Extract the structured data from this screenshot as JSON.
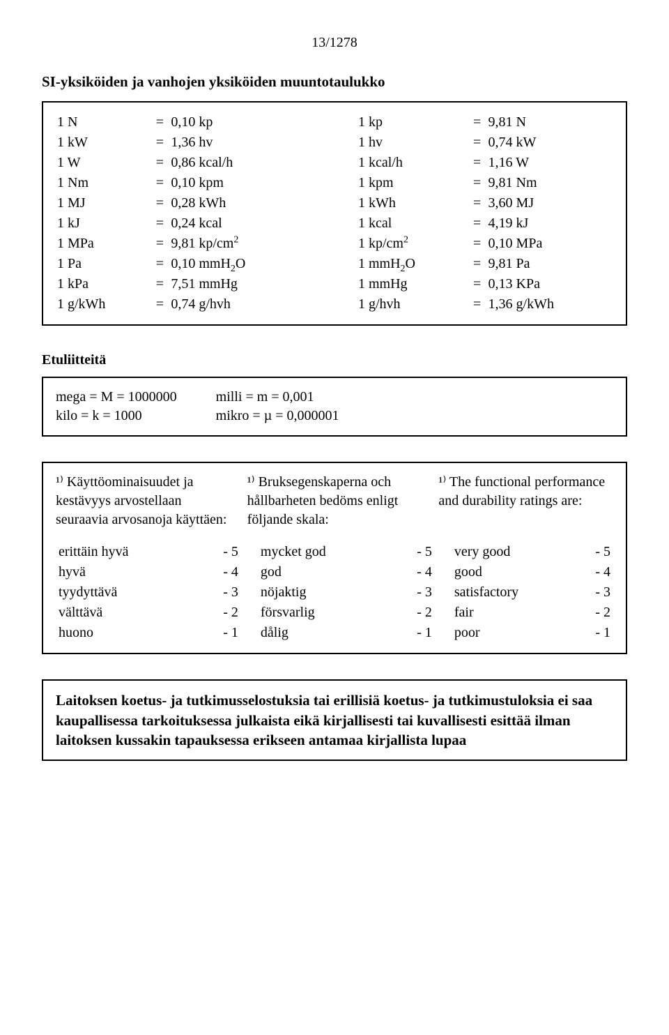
{
  "page_number": "13/1278",
  "title": "SI-yksiköiden ja vanhojen yksiköiden muuntotaulukko",
  "conversions": {
    "left": [
      {
        "a": "1 N",
        "b": "0,10 kp"
      },
      {
        "a": "1 kW",
        "b": "1,36 hv"
      },
      {
        "a": "1 W",
        "b": "0,86 kcal/h"
      },
      {
        "a": "1 Nm",
        "b": "0,10 kpm"
      },
      {
        "a": "1 MJ",
        "b": "0,28 kWh"
      },
      {
        "a": "1 kJ",
        "b": "0,24 kcal"
      },
      {
        "a": "1 MPa",
        "b": "9,81 kp/cm²"
      },
      {
        "a": "1 Pa",
        "b": "0,10 mmH₂O"
      },
      {
        "a": "1 kPa",
        "b": "7,51 mmHg"
      },
      {
        "a": "1 g/kWh",
        "b": "0,74 g/hvh"
      }
    ],
    "right": [
      {
        "a": "1 kp",
        "b": "9,81 N"
      },
      {
        "a": "1 hv",
        "b": "0,74 kW"
      },
      {
        "a": "1 kcal/h",
        "b": "1,16 W"
      },
      {
        "a": "1 kpm",
        "b": "9,81 Nm"
      },
      {
        "a": "1 kWh",
        "b": "3,60 MJ"
      },
      {
        "a": "1 kcal",
        "b": "4,19 kJ"
      },
      {
        "a": "1 kp/cm²",
        "b": "0,10 MPa"
      },
      {
        "a": "1 mmH₂O",
        "b": "9,81 Pa"
      },
      {
        "a": "1 mmHg",
        "b": "0,13 KPa"
      },
      {
        "a": "1 g/hvh",
        "b": "1,36 g/kWh"
      }
    ]
  },
  "prefixes_label": "Etuliitteitä",
  "prefixes": {
    "left": [
      "mega  =  M  =  1000000",
      "kilo    =  k   =  1000"
    ],
    "right": [
      "milli    =  m  =  0,001",
      "mikro  =  µ  =  0,000001"
    ]
  },
  "ratings": {
    "intro": {
      "fi": "¹⁾ Käyttöominaisuudet ja kestävyys arvostellaan seuraavia arvosanoja käyttäen:",
      "sv": "¹⁾ Bruksegenskaperna och hållbarheten bedöms enligt följande skala:",
      "en": "¹⁾ The functional performance and durability ratings are:"
    },
    "rows": [
      {
        "fi": "erittäin hyvä",
        "fis": "- 5",
        "sv": "mycket god",
        "svs": "- 5",
        "en": "very good",
        "ens": "- 5"
      },
      {
        "fi": "hyvä",
        "fis": "- 4",
        "sv": "god",
        "svs": "- 4",
        "en": "good",
        "ens": "- 4"
      },
      {
        "fi": "tyydyttävä",
        "fis": "- 3",
        "sv": "nöjaktig",
        "svs": "- 3",
        "en": "satisfactory",
        "ens": "- 3"
      },
      {
        "fi": "välttävä",
        "fis": "- 2",
        "sv": "försvarlig",
        "svs": "- 2",
        "en": "fair",
        "ens": "- 2"
      },
      {
        "fi": "huono",
        "fis": "- 1",
        "sv": "dålig",
        "svs": "- 1",
        "en": "poor",
        "ens": "- 1"
      }
    ]
  },
  "disclaimer": "Laitoksen koetus- ja tutkimusselostuksia tai erillisiä koetus- ja tutkimustuloksia ei saa kaupallisessa tarkoituksessa julkaista eikä kirjallisesti tai kuvallisesti esittää ilman laitoksen kussakin tapauksessa erikseen antamaa kirjallista lupaa"
}
